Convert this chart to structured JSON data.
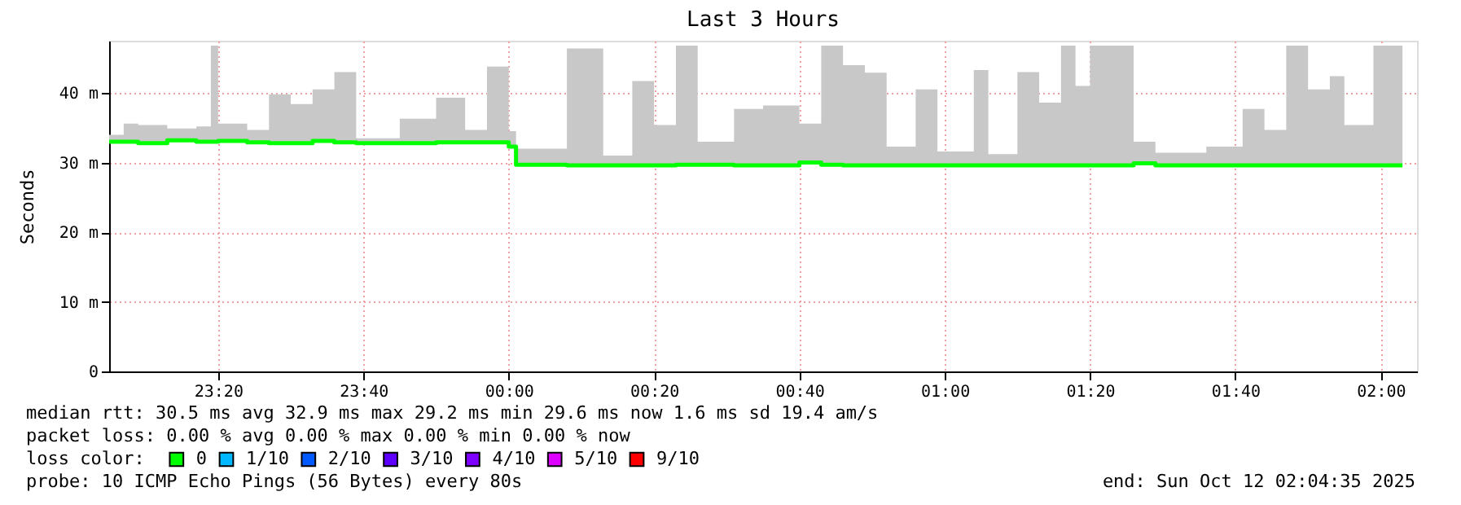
{
  "chart_data": {
    "type": "step",
    "title": "Last 3 Hours",
    "ylabel": "Seconds",
    "legend_title": "loss color:",
    "x": [
      "2025-10-11T23:05",
      "2025-10-11T23:07",
      "2025-10-11T23:09",
      "2025-10-11T23:13",
      "2025-10-11T23:17",
      "2025-10-11T23:19",
      "2025-10-11T23:20",
      "2025-10-11T23:24",
      "2025-10-11T23:27",
      "2025-10-11T23:30",
      "2025-10-11T23:33",
      "2025-10-11T23:36",
      "2025-10-11T23:39",
      "2025-10-11T23:45",
      "2025-10-11T23:50",
      "2025-10-11T23:54",
      "2025-10-11T23:57",
      "2025-10-12T00:00",
      "2025-10-12T00:01",
      "2025-10-12T00:08",
      "2025-10-12T00:13",
      "2025-10-12T00:17",
      "2025-10-12T00:20",
      "2025-10-12T00:23",
      "2025-10-12T00:26",
      "2025-10-12T00:31",
      "2025-10-12T00:35",
      "2025-10-12T00:40",
      "2025-10-12T00:43",
      "2025-10-12T00:46",
      "2025-10-12T00:49",
      "2025-10-12T00:52",
      "2025-10-12T00:56",
      "2025-10-12T00:59",
      "2025-10-12T01:04",
      "2025-10-12T01:06",
      "2025-10-12T01:10",
      "2025-10-12T01:13",
      "2025-10-12T01:16",
      "2025-10-12T01:18",
      "2025-10-12T01:20",
      "2025-10-12T01:26",
      "2025-10-12T01:29",
      "2025-10-12T01:36",
      "2025-10-12T01:41",
      "2025-10-12T01:44",
      "2025-10-12T01:47",
      "2025-10-12T01:50",
      "2025-10-12T01:53",
      "2025-10-12T01:55",
      "2025-10-12T01:59",
      "2025-10-12T02:03"
    ],
    "series": [
      {
        "name": "0",
        "color": "#00ff00",
        "values": [
          33.0,
          33.0,
          32.8,
          33.2,
          33.0,
          33.0,
          33.1,
          32.9,
          32.8,
          32.8,
          33.1,
          32.9,
          32.8,
          32.8,
          32.9,
          32.9,
          32.9,
          32.3,
          29.7,
          29.6,
          29.6,
          29.6,
          29.6,
          29.7,
          29.7,
          29.6,
          29.6,
          30.0,
          29.7,
          29.6,
          29.6,
          29.6,
          29.6,
          29.6,
          29.6,
          29.6,
          29.6,
          29.6,
          29.6,
          29.6,
          29.6,
          29.9,
          29.6,
          29.6,
          29.6,
          29.6,
          29.6,
          29.6,
          29.6,
          29.6,
          29.6,
          29.6
        ],
        "lower": [
          33.0,
          33.0,
          32.8,
          33.2,
          33.0,
          33.0,
          33.1,
          32.9,
          32.8,
          32.8,
          33.1,
          32.9,
          32.8,
          32.8,
          32.9,
          32.9,
          32.9,
          32.3,
          29.7,
          29.6,
          29.6,
          29.6,
          29.6,
          29.7,
          29.7,
          29.6,
          29.6,
          30.0,
          29.7,
          29.6,
          29.6,
          29.6,
          29.6,
          29.6,
          29.6,
          29.6,
          29.6,
          29.6,
          29.6,
          29.6,
          29.6,
          29.9,
          29.6,
          29.6,
          29.6,
          29.6,
          29.6,
          29.6,
          29.6,
          29.6,
          29.6,
          29.6
        ],
        "upper": [
          34.0,
          35.6,
          35.4,
          34.9,
          35.2,
          46.8,
          35.6,
          34.7,
          39.8,
          38.4,
          40.5,
          43.0,
          33.5,
          36.3,
          39.3,
          34.7,
          43.8,
          34.5,
          32.0,
          46.4,
          31.0,
          41.7,
          35.4,
          46.8,
          33.0,
          37.7,
          38.2,
          35.6,
          46.8,
          44.0,
          42.9,
          32.3,
          40.5,
          31.6,
          43.3,
          31.2,
          43.0,
          38.6,
          46.8,
          41.0,
          46.8,
          33.0,
          31.4,
          32.3,
          37.7,
          34.7,
          46.8,
          40.5,
          42.4,
          35.4,
          46.8,
          46.8
        ]
      },
      {
        "name": "1/10",
        "color": "#00b8ff",
        "values": [
          null,
          null,
          null,
          null,
          null,
          null,
          null,
          null,
          null,
          null,
          null,
          null,
          null,
          null,
          null,
          null,
          null,
          null,
          null,
          null,
          null,
          null,
          null,
          null,
          null,
          null,
          null,
          null,
          null,
          null,
          null,
          null,
          null,
          null,
          null,
          null,
          null,
          null,
          null,
          null,
          null,
          null,
          null,
          null,
          null,
          null,
          null,
          null,
          null,
          null,
          null,
          null
        ]
      },
      {
        "name": "2/10",
        "color": "#0059ff",
        "values": [
          null,
          null,
          null,
          null,
          null,
          null,
          null,
          null,
          null,
          null,
          null,
          null,
          null,
          null,
          null,
          null,
          null,
          null,
          null,
          null,
          null,
          null,
          null,
          null,
          null,
          null,
          null,
          null,
          null,
          null,
          null,
          null,
          null,
          null,
          null,
          null,
          null,
          null,
          null,
          null,
          null,
          null,
          null,
          null,
          null,
          null,
          null,
          null,
          null,
          null,
          null,
          null
        ]
      },
      {
        "name": "3/10",
        "color": "#5e00ff",
        "values": [
          null,
          null,
          null,
          null,
          null,
          null,
          null,
          null,
          null,
          null,
          null,
          null,
          null,
          null,
          null,
          null,
          null,
          null,
          null,
          null,
          null,
          null,
          null,
          null,
          null,
          null,
          null,
          null,
          null,
          null,
          null,
          null,
          null,
          null,
          null,
          null,
          null,
          null,
          null,
          null,
          null,
          null,
          null,
          null,
          null,
          null,
          null,
          null,
          null,
          null,
          null,
          null
        ]
      },
      {
        "name": "4/10",
        "color": "#7e00ff",
        "values": [
          null,
          null,
          null,
          null,
          null,
          null,
          null,
          null,
          null,
          null,
          null,
          null,
          null,
          null,
          null,
          null,
          null,
          null,
          null,
          null,
          null,
          null,
          null,
          null,
          null,
          null,
          null,
          null,
          null,
          null,
          null,
          null,
          null,
          null,
          null,
          null,
          null,
          null,
          null,
          null,
          null,
          null,
          null,
          null,
          null,
          null,
          null,
          null,
          null,
          null,
          null,
          null
        ]
      },
      {
        "name": "5/10",
        "color": "#dd00ff",
        "values": [
          null,
          null,
          null,
          null,
          null,
          null,
          null,
          null,
          null,
          null,
          null,
          null,
          null,
          null,
          null,
          null,
          null,
          null,
          null,
          null,
          null,
          null,
          null,
          null,
          null,
          null,
          null,
          null,
          null,
          null,
          null,
          null,
          null,
          null,
          null,
          null,
          null,
          null,
          null,
          null,
          null,
          null,
          null,
          null,
          null,
          null,
          null,
          null,
          null,
          null,
          null,
          null
        ]
      },
      {
        "name": "9/10",
        "color": "#ff0000",
        "values": [
          null,
          null,
          null,
          null,
          null,
          null,
          null,
          null,
          null,
          null,
          null,
          null,
          null,
          null,
          null,
          null,
          null,
          null,
          null,
          null,
          null,
          null,
          null,
          null,
          null,
          null,
          null,
          null,
          null,
          null,
          null,
          null,
          null,
          null,
          null,
          null,
          null,
          null,
          null,
          null,
          null,
          null,
          null,
          null,
          null,
          null,
          null,
          null,
          null,
          null,
          null,
          null
        ]
      }
    ],
    "xlim": [
      "2025-10-11T23:05",
      "2025-10-12T02:05"
    ],
    "xticks": [
      {
        "value": "2025-10-11T23:20",
        "label": "23:20"
      },
      {
        "value": "2025-10-11T23:40",
        "label": "23:40"
      },
      {
        "value": "2025-10-12T00:00",
        "label": "00:00"
      },
      {
        "value": "2025-10-12T00:20",
        "label": "00:20"
      },
      {
        "value": "2025-10-12T00:40",
        "label": "00:40"
      },
      {
        "value": "2025-10-12T01:00",
        "label": "01:00"
      },
      {
        "value": "2025-10-12T01:20",
        "label": "01:20"
      },
      {
        "value": "2025-10-12T01:40",
        "label": "01:40"
      },
      {
        "value": "2025-10-12T02:00",
        "label": "02:00"
      }
    ],
    "ylim": [
      0,
      47.5
    ],
    "yticks": [
      0,
      {
        "value": 10,
        "label": "10 m"
      },
      {
        "value": 20,
        "label": "20 m"
      },
      {
        "value": 30,
        "label": "30 m"
      },
      {
        "value": 40,
        "label": "40 m"
      }
    ],
    "grid": true,
    "legend": "bottom",
    "annotations": [
      "median rtt:  30.5 ms avg  32.9 ms max  29.2 ms min  29.6 ms now  1.6 ms sd  19.4   am/s",
      "packet loss: 0.00 % avg  0.00 % max  0.00 % min  0.00 % now",
      "probe:       10 ICMP Echo Pings (56 Bytes) every 80s",
      "end: Sun Oct 12 02:04:35 2025"
    ]
  }
}
